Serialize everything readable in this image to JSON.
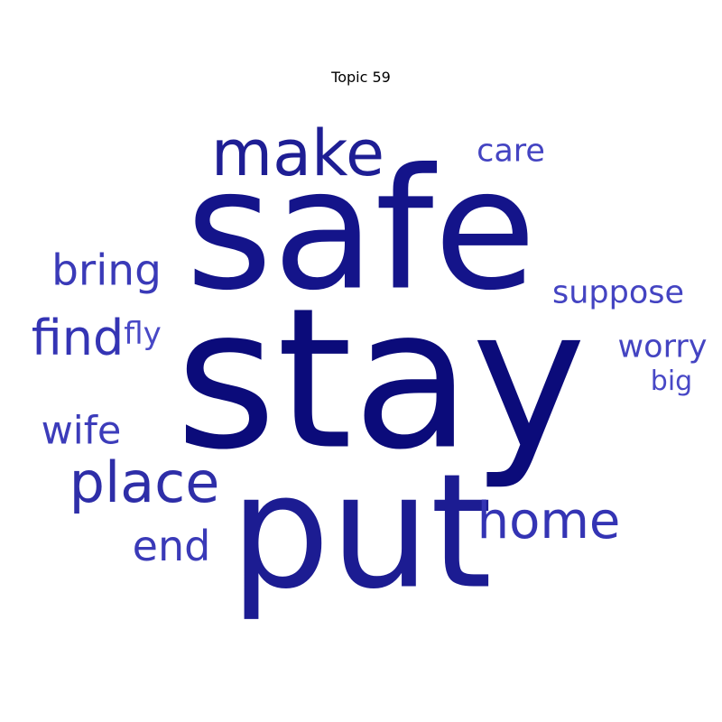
{
  "title": "Topic 59",
  "words": [
    {
      "text": "stay",
      "weight": 1.0,
      "color": "#0b0b7a"
    },
    {
      "text": "safe",
      "weight": 0.86,
      "color": "#14148a"
    },
    {
      "text": "put",
      "weight": 0.8,
      "color": "#1c1c92"
    },
    {
      "text": "make",
      "weight": 0.46,
      "color": "#1e1e94"
    },
    {
      "text": "place",
      "weight": 0.4,
      "color": "#2e2ea8"
    },
    {
      "text": "home",
      "weight": 0.36,
      "color": "#3434b4"
    },
    {
      "text": "find",
      "weight": 0.34,
      "color": "#3434b4"
    },
    {
      "text": "bring",
      "weight": 0.3,
      "color": "#3a3ab8"
    },
    {
      "text": "end",
      "weight": 0.28,
      "color": "#3a3ab8"
    },
    {
      "text": "wife",
      "weight": 0.26,
      "color": "#3c3cba"
    },
    {
      "text": "worry",
      "weight": 0.22,
      "color": "#4444c2"
    },
    {
      "text": "suppose",
      "weight": 0.22,
      "color": "#4444c2"
    },
    {
      "text": "care",
      "weight": 0.22,
      "color": "#4444c2"
    },
    {
      "text": "fly",
      "weight": 0.18,
      "color": "#4848c6"
    },
    {
      "text": "big",
      "weight": 0.18,
      "color": "#4848c6"
    }
  ]
}
